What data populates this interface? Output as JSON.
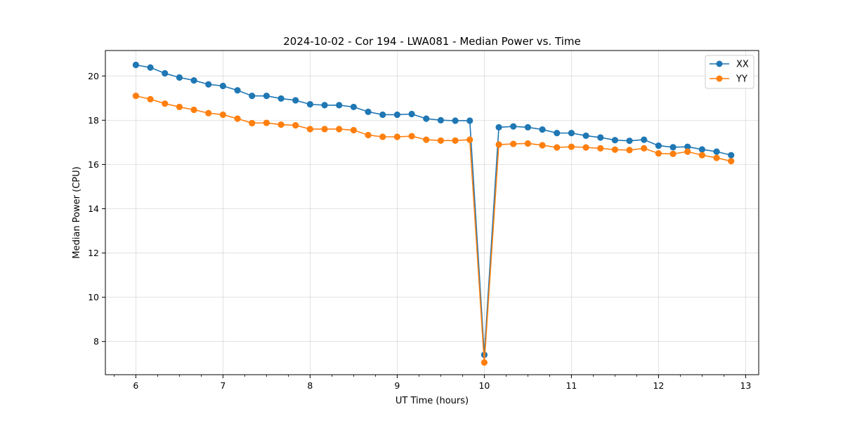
{
  "chart_data": {
    "type": "line",
    "title": "2024-10-02 - Cor 194 - LWA081 - Median Power vs. Time",
    "xlabel": "UT Time (hours)",
    "ylabel": "Median Power (CPU)",
    "xlim": [
      5.65,
      13.15
    ],
    "ylim": [
      6.5,
      21.15
    ],
    "xticks": [
      6,
      7,
      8,
      9,
      10,
      11,
      12,
      13
    ],
    "xtick_labels": [
      "6",
      "7",
      "8",
      "9",
      "10",
      "11",
      "12",
      "13"
    ],
    "yticks": [
      8,
      10,
      12,
      14,
      16,
      18,
      20
    ],
    "ytick_labels": [
      "8",
      "10",
      "12",
      "14",
      "16",
      "18",
      "20"
    ],
    "grid": true,
    "legend_position": "top-right",
    "x": [
      6.0,
      6.1667,
      6.3333,
      6.5,
      6.6667,
      6.8333,
      7.0,
      7.1667,
      7.3333,
      7.5,
      7.6667,
      7.8333,
      8.0,
      8.1667,
      8.3333,
      8.5,
      8.6667,
      8.8333,
      9.0,
      9.1667,
      9.3333,
      9.5,
      9.6667,
      9.8333,
      10.0,
      10.1667,
      10.3333,
      10.5,
      10.6667,
      10.8333,
      11.0,
      11.1667,
      11.3333,
      11.5,
      11.6667,
      11.8333,
      12.0,
      12.1667,
      12.3333,
      12.5,
      12.6667,
      12.8333
    ],
    "series": [
      {
        "name": "XX",
        "color": "#1f77b4",
        "values": [
          20.5,
          20.38,
          20.12,
          19.93,
          19.8,
          19.62,
          19.55,
          19.35,
          19.1,
          19.1,
          18.98,
          18.9,
          18.72,
          18.68,
          18.68,
          18.6,
          18.38,
          18.25,
          18.25,
          18.28,
          18.07,
          18.0,
          17.98,
          17.98,
          7.4,
          17.68,
          17.72,
          17.68,
          17.58,
          17.42,
          17.42,
          17.3,
          17.22,
          17.1,
          17.07,
          17.12,
          16.85,
          16.78,
          16.8,
          16.68,
          16.58,
          16.42
        ]
      },
      {
        "name": "YY",
        "color": "#ff7f0e",
        "values": [
          19.1,
          18.95,
          18.75,
          18.6,
          18.47,
          18.32,
          18.25,
          18.07,
          17.87,
          17.88,
          17.8,
          17.77,
          17.6,
          17.6,
          17.6,
          17.55,
          17.33,
          17.25,
          17.25,
          17.28,
          17.12,
          17.08,
          17.08,
          17.12,
          7.05,
          16.9,
          16.93,
          16.95,
          16.87,
          16.77,
          16.8,
          16.77,
          16.73,
          16.67,
          16.65,
          16.73,
          16.5,
          16.48,
          16.58,
          16.42,
          16.3,
          16.15
        ]
      }
    ]
  }
}
